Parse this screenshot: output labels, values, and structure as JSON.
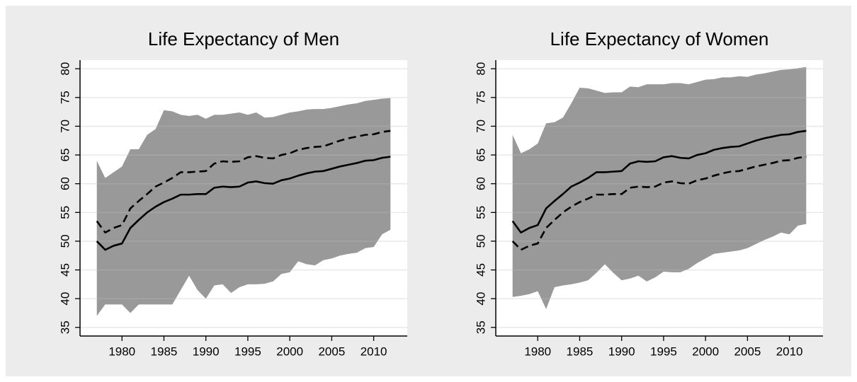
{
  "chart_data": [
    {
      "type": "band-line",
      "title": "Life Expectancy of Men",
      "x": [
        1977,
        1978,
        1979,
        1980,
        1981,
        1982,
        1983,
        1984,
        1985,
        1986,
        1987,
        1988,
        1989,
        1990,
        1991,
        1992,
        1993,
        1994,
        1995,
        1996,
        1997,
        1998,
        1999,
        2000,
        2001,
        2002,
        2003,
        2004,
        2005,
        2006,
        2007,
        2008,
        2009,
        2010,
        2011,
        2012
      ],
      "band": {
        "color": "#999999",
        "upper": [
          64,
          61,
          62,
          63,
          66,
          66,
          68.5,
          69.5,
          72.8,
          72.6,
          72,
          71.8,
          72,
          71.3,
          72,
          72,
          72.2,
          72.4,
          72,
          72.4,
          71.5,
          71.6,
          72,
          72.4,
          72.6,
          72.9,
          73,
          73,
          73.2,
          73.5,
          73.8,
          74,
          74.4,
          74.6,
          74.8,
          74.9
        ],
        "lower": [
          37,
          39,
          39,
          39,
          37.5,
          39,
          39,
          39,
          39,
          39,
          41.5,
          44,
          41.5,
          40,
          42.3,
          42.5,
          41,
          42,
          42.5,
          42.5,
          42.6,
          43,
          44.3,
          44.6,
          46.5,
          46,
          45.8,
          46.7,
          47,
          47.5,
          47.8,
          48,
          48.8,
          49,
          51.2,
          52
        ]
      },
      "series": [
        {
          "color": "#000000",
          "dashed": false,
          "values": [
            50,
            48.5,
            49.2,
            49.6,
            52.3,
            53.7,
            55,
            56,
            56.8,
            57.4,
            58.1,
            58.1,
            58.2,
            58.2,
            59.3,
            59.5,
            59.4,
            59.5,
            60.2,
            60.4,
            60.1,
            60,
            60.6,
            60.9,
            61.4,
            61.8,
            62.1,
            62.2,
            62.6,
            63,
            63.3,
            63.6,
            64,
            64.1,
            64.5,
            64.7
          ]
        },
        {
          "color": "#000000",
          "dashed": true,
          "values": [
            53.5,
            51.5,
            52.3,
            52.8,
            55.7,
            57,
            58.2,
            59.5,
            60.2,
            61,
            62,
            62,
            62.1,
            62.2,
            63.5,
            63.9,
            63.8,
            63.9,
            64.6,
            64.8,
            64.5,
            64.4,
            65,
            65.3,
            65.9,
            66.2,
            66.4,
            66.5,
            67,
            67.5,
            67.9,
            68.2,
            68.5,
            68.6,
            69,
            69.2
          ]
        }
      ],
      "xlim": [
        1975,
        2014
      ],
      "xticks": [
        1980,
        1985,
        1990,
        1995,
        2000,
        2005,
        2010
      ],
      "ylim": [
        33.5,
        81.5
      ],
      "yticks": [
        35,
        40,
        45,
        50,
        55,
        60,
        65,
        70,
        75,
        80
      ],
      "grid": true
    },
    {
      "type": "band-line",
      "title": "Life Expectancy of Women",
      "x": [
        1977,
        1978,
        1979,
        1980,
        1981,
        1982,
        1983,
        1984,
        1985,
        1986,
        1987,
        1988,
        1989,
        1990,
        1991,
        1992,
        1993,
        1994,
        1995,
        1996,
        1997,
        1998,
        1999,
        2000,
        2001,
        2002,
        2003,
        2004,
        2005,
        2006,
        2007,
        2008,
        2009,
        2010,
        2011,
        2012
      ],
      "band": {
        "color": "#999999",
        "upper": [
          68.5,
          65.3,
          66,
          67,
          70.5,
          70.7,
          71.5,
          74,
          76.7,
          76.6,
          76.2,
          75.8,
          75.9,
          75.9,
          76.9,
          76.8,
          77.3,
          77.3,
          77.3,
          77.5,
          77.5,
          77.3,
          77.7,
          78.1,
          78.2,
          78.5,
          78.5,
          78.7,
          78.6,
          79,
          79.2,
          79.5,
          79.8,
          79.9,
          80.1,
          80.3
        ],
        "lower": [
          40.3,
          40.5,
          40.8,
          41.3,
          38.2,
          42,
          42.3,
          42.5,
          42.8,
          43.2,
          44.5,
          46,
          44.5,
          43.2,
          43.5,
          44,
          43,
          43.7,
          44.7,
          44.6,
          44.6,
          45.2,
          46.2,
          47,
          47.8,
          48,
          48.2,
          48.4,
          48.8,
          49.5,
          50.2,
          50.8,
          51.5,
          51.2,
          52.7,
          53
        ]
      },
      "series": [
        {
          "color": "#000000",
          "dashed": false,
          "values": [
            53.5,
            51.5,
            52.3,
            52.8,
            55.7,
            57,
            58.2,
            59.5,
            60.2,
            61,
            62,
            62,
            62.1,
            62.2,
            63.5,
            63.9,
            63.8,
            63.9,
            64.6,
            64.8,
            64.5,
            64.4,
            65,
            65.3,
            65.9,
            66.2,
            66.4,
            66.5,
            67,
            67.5,
            67.9,
            68.2,
            68.5,
            68.6,
            69,
            69.2
          ]
        },
        {
          "color": "#000000",
          "dashed": true,
          "values": [
            50,
            48.5,
            49.2,
            49.6,
            52.3,
            53.7,
            55,
            56,
            56.8,
            57.4,
            58.1,
            58.1,
            58.2,
            58.2,
            59.3,
            59.5,
            59.4,
            59.5,
            60.2,
            60.4,
            60.1,
            60,
            60.6,
            60.9,
            61.4,
            61.8,
            62.1,
            62.2,
            62.6,
            63,
            63.3,
            63.6,
            64,
            64.1,
            64.5,
            64.7
          ]
        }
      ],
      "xlim": [
        1975,
        2014
      ],
      "xticks": [
        1980,
        1985,
        1990,
        1995,
        2000,
        2005,
        2010
      ],
      "ylim": [
        33.5,
        81.5
      ],
      "yticks": [
        35,
        40,
        45,
        50,
        55,
        60,
        65,
        70,
        75,
        80
      ],
      "grid": true
    }
  ]
}
